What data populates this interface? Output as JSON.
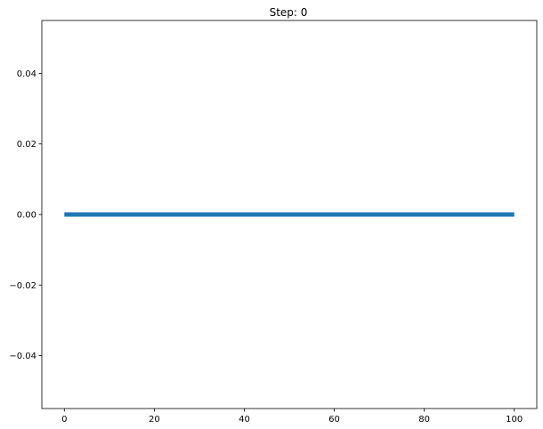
{
  "chart_data": {
    "type": "line",
    "title": "Step: 0",
    "xlabel": "",
    "ylabel": "",
    "xlim": [
      -5,
      105
    ],
    "ylim": [
      -0.055,
      0.055
    ],
    "xticks": [
      0,
      20,
      40,
      60,
      80,
      100
    ],
    "xtick_labels": [
      "0",
      "20",
      "40",
      "60",
      "80",
      "100"
    ],
    "yticks": [
      -0.04,
      -0.02,
      0.0,
      0.02,
      0.04
    ],
    "ytick_labels": [
      "−0.04",
      "−0.02",
      "0.00",
      "0.02",
      "0.04"
    ],
    "grid": false,
    "series": [
      {
        "name": "line",
        "color": "#1f77b4",
        "x": [
          0,
          100
        ],
        "y": [
          0,
          0
        ]
      }
    ]
  }
}
